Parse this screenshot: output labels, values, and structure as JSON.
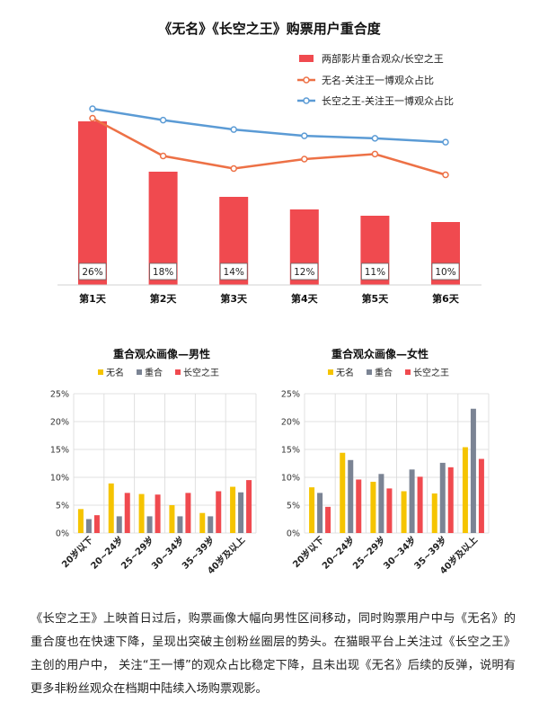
{
  "chart_data": [
    {
      "type": "bar+line",
      "title": "《无名》《长空之王》购票用户重合度",
      "categories": [
        "第1天",
        "第2天",
        "第3天",
        "第4天",
        "第5天",
        "第6天"
      ],
      "bar_series": {
        "name": "两部影片重合观众/长空之王",
        "values": [
          26,
          18,
          14,
          12,
          11,
          10
        ],
        "labels": [
          "26%",
          "18%",
          "14%",
          "12%",
          "11%",
          "10%"
        ],
        "color": "#f04a4f"
      },
      "line_series": [
        {
          "name": "无名-关注王一博观众占比",
          "values": [
            26.5,
            20.5,
            18.5,
            20,
            20.8,
            17.5
          ],
          "color": "#ed7146"
        },
        {
          "name": "长空之王-关注王一博观众占比",
          "values": [
            28,
            26.2,
            24.7,
            23.7,
            23.3,
            22.7
          ],
          "color": "#5b9bd5"
        }
      ],
      "legend_position": "top-right",
      "ylim": [
        0,
        30
      ]
    },
    {
      "type": "bar",
      "title": "重合观众画像—男性",
      "categories": [
        "20岁以下",
        "20~24岁",
        "25~29岁",
        "30~34岁",
        "35~39岁",
        "40岁及以上"
      ],
      "series": [
        {
          "name": "无名",
          "values": [
            4.3,
            8.9,
            7.0,
            5.0,
            3.6,
            8.3
          ],
          "color": "#f5c400"
        },
        {
          "name": "重合",
          "values": [
            2.5,
            3.0,
            3.0,
            3.0,
            3.0,
            7.3
          ],
          "color": "#7b8494"
        },
        {
          "name": "长空之王",
          "values": [
            3.2,
            7.2,
            6.9,
            7.2,
            7.5,
            9.5
          ],
          "color": "#f04a4f"
        }
      ],
      "yticks": [
        "0%",
        "5%",
        "10%",
        "15%",
        "20%",
        "25%"
      ],
      "ylim": [
        0,
        25
      ],
      "grid": true,
      "legend_position": "top"
    },
    {
      "type": "bar",
      "title": "重合观众画像—女性",
      "categories": [
        "20岁以下",
        "20~24岁",
        "25~29岁",
        "30~34岁",
        "35~39岁",
        "40岁及以上"
      ],
      "series": [
        {
          "name": "无名",
          "values": [
            8.2,
            14.4,
            9.2,
            7.5,
            7.1,
            15.4
          ],
          "color": "#f5c400"
        },
        {
          "name": "重合",
          "values": [
            7.2,
            13.1,
            10.6,
            11.4,
            12.6,
            22.3
          ],
          "color": "#7b8494"
        },
        {
          "name": "长空之王",
          "values": [
            4.7,
            9.6,
            8.0,
            10.1,
            11.8,
            13.3
          ],
          "color": "#f04a4f"
        }
      ],
      "yticks": [
        "0%",
        "5%",
        "10%",
        "15%",
        "20%",
        "25%"
      ],
      "ylim": [
        0,
        25
      ],
      "grid": true,
      "legend_position": "top"
    }
  ],
  "paragraph": "《长空之王》上映首日过后，购票画像大幅向男性区间移动，同时购票用户中与《无名》的重合度也在快速下降，呈现出突破主创粉丝圈层的势头。在猫眼平台上关注过《长空之王》主创的用户中， 关注“王一博”的观众占比稳定下降，且未出现《无名》后续的反弹，说明有更多非粉丝观众在档期中陆续入场购票观影。"
}
